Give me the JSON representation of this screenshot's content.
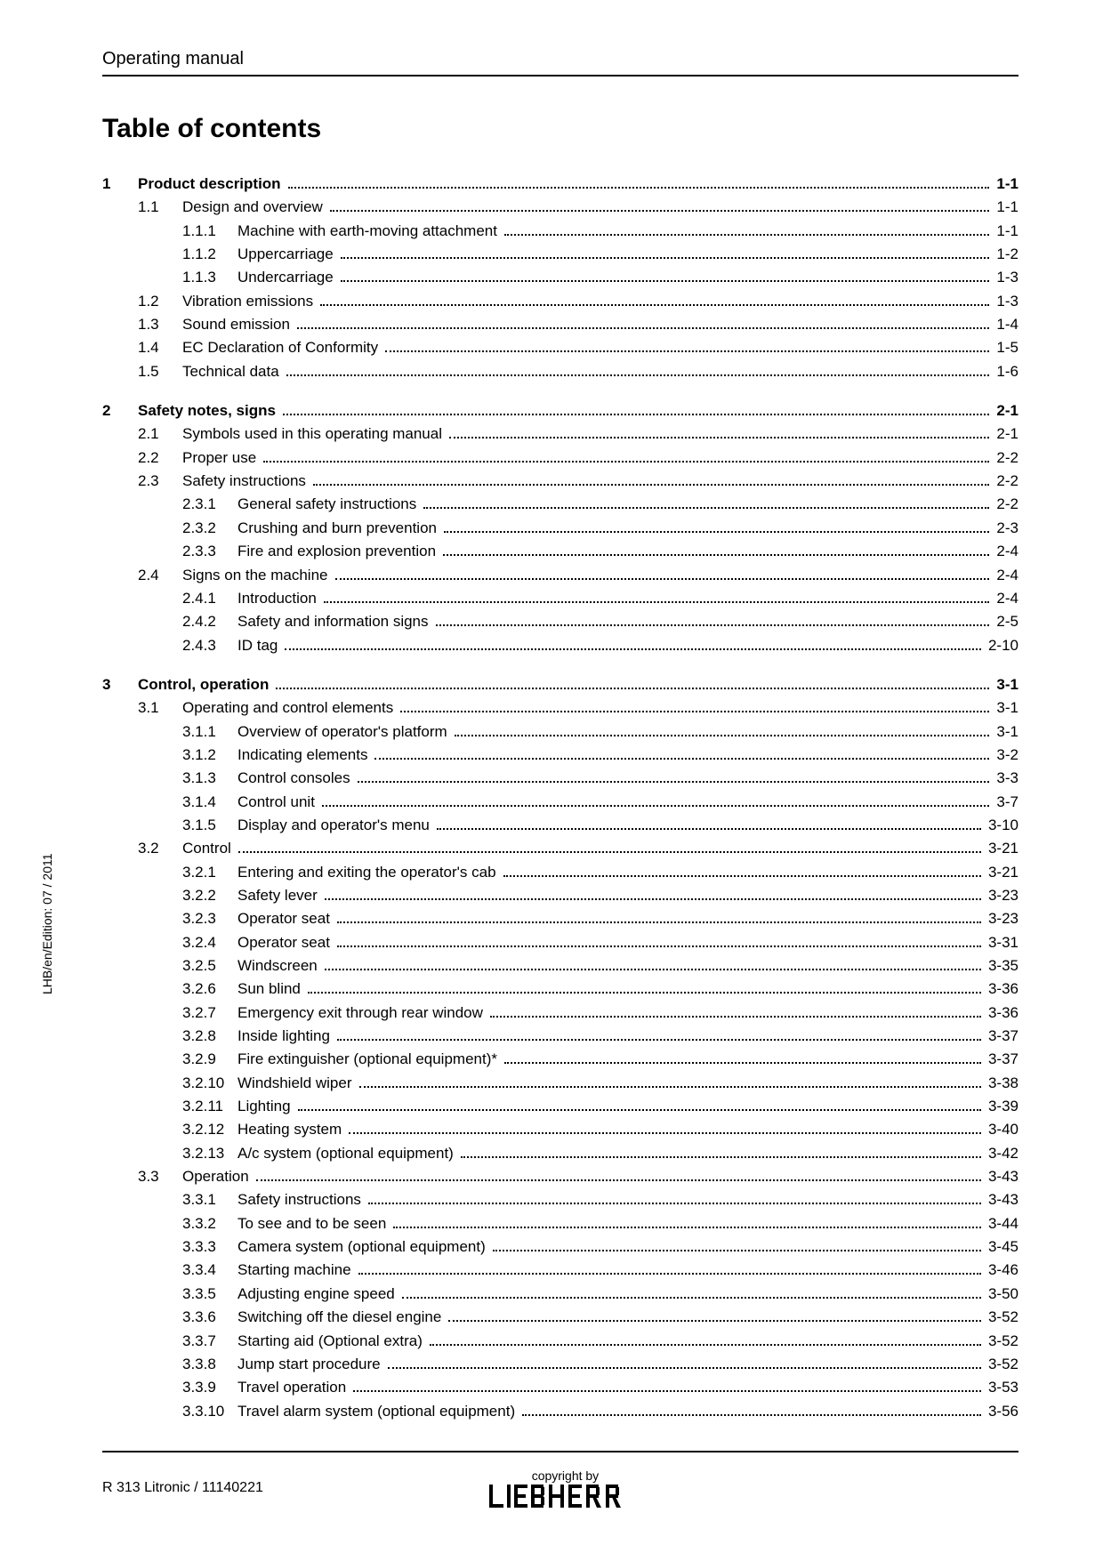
{
  "header": "Operating manual",
  "title": "Table of contents",
  "side_text": "LHB/en/Edition: 07 / 2011",
  "footer": {
    "model": "R 313 Litronic / 11140221",
    "copyright": "copyright by"
  },
  "toc": [
    {
      "n": "1",
      "t": "Product description",
      "p": "1-1",
      "bold": true,
      "lvl": 0
    },
    {
      "n": "1.1",
      "t": "Design and overview",
      "p": "1-1",
      "lvl": 1
    },
    {
      "n": "1.1.1",
      "t": "Machine with earth-moving attachment",
      "p": "1-1",
      "lvl": 2
    },
    {
      "n": "1.1.2",
      "t": "Uppercarriage",
      "p": "1-2",
      "lvl": 2
    },
    {
      "n": "1.1.3",
      "t": "Undercarriage",
      "p": "1-3",
      "lvl": 2
    },
    {
      "n": "1.2",
      "t": "Vibration emissions",
      "p": "1-3",
      "lvl": 1
    },
    {
      "n": "1.3",
      "t": "Sound emission",
      "p": "1-4",
      "lvl": 1
    },
    {
      "n": "1.4",
      "t": "EC Declaration of Conformity",
      "p": "1-5",
      "lvl": 1
    },
    {
      "n": "1.5",
      "t": "Technical data",
      "p": "1-6",
      "lvl": 1
    },
    {
      "n": "2",
      "t": "Safety notes, signs",
      "p": "2-1",
      "bold": true,
      "lvl": 0
    },
    {
      "n": "2.1",
      "t": "Symbols used in this operating manual",
      "p": "2-1",
      "lvl": 1
    },
    {
      "n": "2.2",
      "t": "Proper use",
      "p": "2-2",
      "lvl": 1
    },
    {
      "n": "2.3",
      "t": "Safety instructions",
      "p": "2-2",
      "lvl": 1
    },
    {
      "n": "2.3.1",
      "t": "General safety instructions",
      "p": "2-2",
      "lvl": 2
    },
    {
      "n": "2.3.2",
      "t": "Crushing and burn prevention",
      "p": "2-3",
      "lvl": 2
    },
    {
      "n": "2.3.3",
      "t": "Fire and explosion prevention",
      "p": "2-4",
      "lvl": 2
    },
    {
      "n": "2.4",
      "t": "Signs on the machine",
      "p": "2-4",
      "lvl": 1
    },
    {
      "n": "2.4.1",
      "t": "Introduction",
      "p": "2-4",
      "lvl": 2
    },
    {
      "n": "2.4.2",
      "t": "Safety and information signs",
      "p": "2-5",
      "lvl": 2
    },
    {
      "n": "2.4.3",
      "t": "ID tag",
      "p": "2-10",
      "lvl": 2
    },
    {
      "n": "3",
      "t": "Control, operation",
      "p": "3-1",
      "bold": true,
      "lvl": 0
    },
    {
      "n": "3.1",
      "t": "Operating and control elements",
      "p": "3-1",
      "lvl": 1
    },
    {
      "n": "3.1.1",
      "t": "Overview of operator's platform",
      "p": "3-1",
      "lvl": 2
    },
    {
      "n": "3.1.2",
      "t": "Indicating elements",
      "p": "3-2",
      "lvl": 2
    },
    {
      "n": "3.1.3",
      "t": "Control consoles",
      "p": "3-3",
      "lvl": 2
    },
    {
      "n": "3.1.4",
      "t": "Control unit",
      "p": "3-7",
      "lvl": 2
    },
    {
      "n": "3.1.5",
      "t": "Display and operator's menu",
      "p": "3-10",
      "lvl": 2
    },
    {
      "n": "3.2",
      "t": "Control",
      "p": "3-21",
      "lvl": 1
    },
    {
      "n": "3.2.1",
      "t": "Entering and exiting the operator's cab",
      "p": "3-21",
      "lvl": 2
    },
    {
      "n": "3.2.2",
      "t": "Safety lever",
      "p": "3-23",
      "lvl": 2
    },
    {
      "n": "3.2.3",
      "t": "Operator seat",
      "p": "3-23",
      "lvl": 2
    },
    {
      "n": "3.2.4",
      "t": "Operator seat",
      "p": "3-31",
      "lvl": 2
    },
    {
      "n": "3.2.5",
      "t": "Windscreen",
      "p": "3-35",
      "lvl": 2
    },
    {
      "n": "3.2.6",
      "t": "Sun blind",
      "p": "3-36",
      "lvl": 2
    },
    {
      "n": "3.2.7",
      "t": "Emergency exit through rear window",
      "p": "3-36",
      "lvl": 2
    },
    {
      "n": "3.2.8",
      "t": "Inside lighting",
      "p": "3-37",
      "lvl": 2
    },
    {
      "n": "3.2.9",
      "t": "Fire extinguisher (optional equipment)*",
      "p": "3-37",
      "lvl": 2
    },
    {
      "n": "3.2.10",
      "t": "Windshield wiper",
      "p": "3-38",
      "lvl": 2
    },
    {
      "n": "3.2.11",
      "t": "Lighting",
      "p": "3-39",
      "lvl": 2
    },
    {
      "n": "3.2.12",
      "t": "Heating system",
      "p": "3-40",
      "lvl": 2
    },
    {
      "n": "3.2.13",
      "t": "A/c system (optional equipment)",
      "p": "3-42",
      "lvl": 2
    },
    {
      "n": "3.3",
      "t": "Operation",
      "p": "3-43",
      "lvl": 1
    },
    {
      "n": "3.3.1",
      "t": "Safety instructions",
      "p": "3-43",
      "lvl": 2
    },
    {
      "n": "3.3.2",
      "t": "To see and to be seen",
      "p": "3-44",
      "lvl": 2
    },
    {
      "n": "3.3.3",
      "t": "Camera system (optional equipment)",
      "p": "3-45",
      "lvl": 2
    },
    {
      "n": "3.3.4",
      "t": "Starting machine",
      "p": "3-46",
      "lvl": 2
    },
    {
      "n": "3.3.5",
      "t": "Adjusting engine speed",
      "p": "3-50",
      "lvl": 2
    },
    {
      "n": "3.3.6",
      "t": "Switching off the diesel engine",
      "p": "3-52",
      "lvl": 2
    },
    {
      "n": "3.3.7",
      "t": "Starting aid (Optional extra)",
      "p": "3-52",
      "lvl": 2
    },
    {
      "n": "3.3.8",
      "t": "Jump start procedure",
      "p": "3-52",
      "lvl": 2
    },
    {
      "n": "3.3.9",
      "t": "Travel operation",
      "p": "3-53",
      "lvl": 2
    },
    {
      "n": "3.3.10",
      "t": "Travel alarm system (optional equipment)",
      "p": "3-56",
      "lvl": 2
    }
  ]
}
